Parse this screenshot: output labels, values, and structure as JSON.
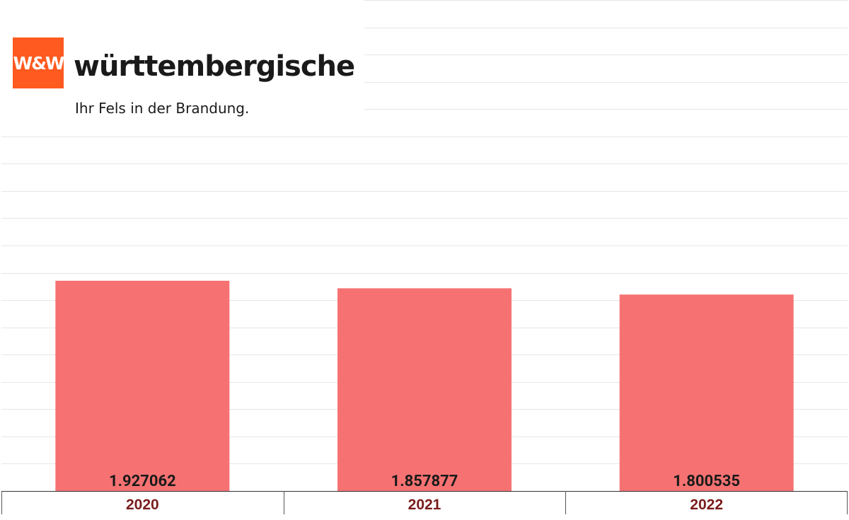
{
  "brand": {
    "logo_mark": "W&W",
    "name": "württembergische",
    "tagline": "Ihr Fels in der Brandung."
  },
  "colors": {
    "bar": "#f67272",
    "grid": "#e6e6e6",
    "value_label": "#1a1a1a",
    "category_label": "#7a1c1c",
    "logo_orange": "#ff5a1f"
  },
  "chart_data": {
    "type": "bar",
    "categories": [
      "2020",
      "2021",
      "2022"
    ],
    "values": [
      1.927062,
      1.857877,
      1.800535
    ],
    "value_labels": [
      "1.927062",
      "1.857877",
      "1.800535"
    ],
    "title": "",
    "xlabel": "",
    "ylabel": "",
    "ylim": [
      0,
      4.5
    ],
    "grid": true,
    "legend": "none"
  }
}
